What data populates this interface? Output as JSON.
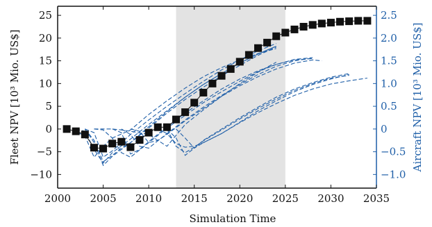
{
  "chart_data": {
    "type": "line",
    "xlabel": "Simulation Time",
    "ylabel": "Fleet NPV [10³ Mio. US$]",
    "ylabel_right": "Aircraft NPV [10³ Mio. US$]",
    "xlim": [
      2000,
      2035
    ],
    "ylim": [
      -13,
      27
    ],
    "ylim_right": [
      -1.3,
      2.7
    ],
    "x_ticks": [
      2000,
      2005,
      2010,
      2015,
      2020,
      2025,
      2030,
      2035
    ],
    "y_ticks": [
      -10,
      -5,
      0,
      5,
      10,
      15,
      20,
      25
    ],
    "y_ticks_right": [
      "−1.0",
      "−0.5",
      "0",
      "0.5",
      "1.0",
      "1.5",
      "2.0",
      "2.5"
    ],
    "shaded_region": [
      2013,
      2025
    ],
    "grid": false,
    "colors": {
      "fleet": "#111111",
      "aircraft": "#1f5fa8",
      "shade": "#e3e3e3",
      "right_axis": "#1f5fa8"
    },
    "fleet_series": {
      "marker": "square",
      "x": [
        2001,
        2002,
        2003,
        2004,
        2005,
        2006,
        2007,
        2008,
        2009,
        2010,
        2011,
        2012,
        2013,
        2014,
        2015,
        2016,
        2017,
        2018,
        2019,
        2020,
        2021,
        2022,
        2023,
        2024,
        2025,
        2026,
        2027,
        2028,
        2029,
        2030,
        2031,
        2032,
        2033,
        2034
      ],
      "y": [
        0,
        -0.5,
        -1.2,
        -4.1,
        -4.3,
        -3.2,
        -2.8,
        -4.0,
        -2.4,
        -0.8,
        0.4,
        0.4,
        2.1,
        3.7,
        5.8,
        8.0,
        10.0,
        11.7,
        13.2,
        14.8,
        16.3,
        17.8,
        19.0,
        20.4,
        21.2,
        21.9,
        22.5,
        22.9,
        23.2,
        23.4,
        23.6,
        23.7,
        23.8,
        23.8
      ]
    },
    "aircraft_series": [
      {
        "x": [
          2001,
          2002,
          2003,
          2004,
          2005,
          2006,
          2008,
          2010,
          2012,
          2014,
          2016,
          2018,
          2020,
          2022,
          2024
        ],
        "y": [
          0,
          -0.06,
          -0.15,
          -0.62,
          -0.38,
          -0.2,
          -0.02,
          0.32,
          0.62,
          0.9,
          1.15,
          1.35,
          1.52,
          1.66,
          1.77
        ]
      },
      {
        "x": [
          2002,
          2003,
          2004,
          2005,
          2006,
          2008,
          2010,
          2012,
          2014,
          2016,
          2018,
          2020,
          2022,
          2024
        ],
        "y": [
          0,
          -0.05,
          -0.45,
          -0.75,
          -0.52,
          -0.22,
          0.1,
          0.4,
          0.7,
          0.98,
          1.22,
          1.45,
          1.65,
          1.82
        ]
      },
      {
        "x": [
          2003,
          2004,
          2005,
          2006,
          2008,
          2010,
          2012,
          2014,
          2016,
          2018,
          2020,
          2022,
          2024
        ],
        "y": [
          0,
          -0.3,
          -0.8,
          -0.6,
          -0.3,
          0.02,
          0.35,
          0.65,
          0.92,
          1.17,
          1.4,
          1.62,
          1.8
        ]
      },
      {
        "x": [
          2003,
          2004,
          2005,
          2006,
          2008,
          2010,
          2012,
          2014,
          2016,
          2018,
          2020,
          2022,
          2024
        ],
        "y": [
          0,
          -0.08,
          -0.62,
          -0.48,
          -0.12,
          0.2,
          0.5,
          0.78,
          1.05,
          1.3,
          1.52,
          1.72,
          1.88
        ]
      },
      {
        "x": [
          2003,
          2004,
          2005,
          2006,
          2007,
          2008,
          2010,
          2012,
          2014,
          2016,
          2018,
          2020,
          2022,
          2024
        ],
        "y": [
          0,
          -0.25,
          -0.72,
          -0.58,
          -0.42,
          -0.3,
          0.05,
          0.38,
          0.7,
          0.98,
          1.22,
          1.45,
          1.65,
          1.82
        ]
      },
      {
        "x": [
          2004,
          2005,
          2006,
          2007,
          2008,
          2010,
          2012,
          2014,
          2016,
          2018,
          2020,
          2022,
          2024
        ],
        "y": [
          0,
          0,
          0,
          -0.02,
          -0.05,
          -0.12,
          -0.38,
          0.1,
          0.42,
          0.72,
          1.0,
          1.25,
          1.47
        ]
      },
      {
        "x": [
          2004,
          2005,
          2006,
          2007,
          2008,
          2010,
          2012,
          2014,
          2016,
          2018,
          2020,
          2022,
          2024,
          2026,
          2028
        ],
        "y": [
          0,
          -0.02,
          -0.2,
          -0.52,
          -0.62,
          -0.3,
          0.02,
          0.3,
          0.58,
          0.82,
          1.05,
          1.26,
          1.42,
          1.53,
          1.57
        ]
      },
      {
        "x": [
          2006,
          2007,
          2008,
          2009,
          2010,
          2012,
          2014,
          2016,
          2018,
          2020,
          2022,
          2024,
          2026,
          2028
        ],
        "y": [
          0,
          -0.08,
          -0.55,
          -0.45,
          -0.28,
          0.05,
          0.35,
          0.62,
          0.88,
          1.1,
          1.28,
          1.42,
          1.52,
          1.55
        ]
      },
      {
        "x": [
          2007,
          2008,
          2009,
          2010,
          2012,
          2014,
          2016,
          2018,
          2020,
          2022,
          2024,
          2026,
          2028
        ],
        "y": [
          0,
          -0.12,
          -0.38,
          -0.42,
          -0.1,
          0.2,
          0.48,
          0.74,
          0.98,
          1.2,
          1.38,
          1.5,
          1.56
        ]
      },
      {
        "x": [
          2008,
          2009,
          2010,
          2011,
          2012,
          2014,
          2016,
          2018,
          2020,
          2022,
          2024,
          2026,
          2028,
          2029
        ],
        "y": [
          0,
          -0.05,
          -0.3,
          -0.25,
          -0.12,
          0.18,
          0.45,
          0.72,
          0.95,
          1.15,
          1.32,
          1.45,
          1.52,
          1.5
        ]
      },
      {
        "x": [
          2011,
          2012,
          2013,
          2014,
          2015,
          2016,
          2018,
          2020,
          2022,
          2024,
          2026,
          2028,
          2030,
          2032
        ],
        "y": [
          0,
          -0.1,
          -0.32,
          -0.4,
          -0.38,
          -0.3,
          -0.1,
          0.15,
          0.4,
          0.62,
          0.82,
          0.98,
          1.1,
          1.2
        ]
      },
      {
        "x": [
          2012,
          2013,
          2014,
          2015,
          2016,
          2018,
          2020,
          2022,
          2024,
          2026,
          2028,
          2030,
          2032
        ],
        "y": [
          0,
          -0.2,
          -0.58,
          -0.42,
          -0.25,
          0.0,
          0.25,
          0.48,
          0.7,
          0.88,
          1.02,
          1.14,
          1.22
        ]
      },
      {
        "x": [
          2012,
          2013,
          2014,
          2015,
          2016,
          2018,
          2020,
          2022,
          2024,
          2026,
          2028,
          2030,
          2032
        ],
        "y": [
          0,
          -0.38,
          -0.52,
          -0.4,
          -0.26,
          -0.02,
          0.22,
          0.45,
          0.66,
          0.85,
          1.0,
          1.12,
          1.18
        ]
      },
      {
        "x": [
          2013,
          2014,
          2015,
          2016,
          2018,
          2020,
          2022,
          2024,
          2026,
          2028,
          2030,
          2032,
          2034
        ],
        "y": [
          0,
          -0.2,
          -0.42,
          -0.3,
          -0.1,
          0.14,
          0.36,
          0.56,
          0.74,
          0.88,
          0.99,
          1.06,
          1.12
        ]
      }
    ]
  }
}
